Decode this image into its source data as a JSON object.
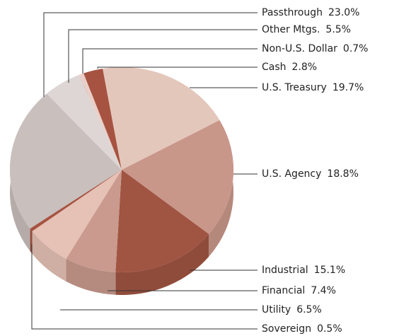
{
  "chart_data": {
    "type": "pie",
    "categories": [
      "Passthrough",
      "Other Mtgs.",
      "Non-U.S. Dollar",
      "Cash",
      "U.S. Treasury",
      "U.S. Agency",
      "Industrial",
      "Financial",
      "Utility",
      "Sovereign"
    ],
    "values": [
      23.0,
      5.5,
      0.7,
      2.8,
      19.7,
      18.8,
      15.1,
      7.4,
      6.5,
      0.5
    ],
    "value_labels": [
      "23.0%",
      "5.5%",
      "0.7%",
      "2.8%",
      "19.7%",
      "18.8%",
      "15.1%",
      "7.4%",
      "6.5%",
      "0.5%"
    ],
    "colors": [
      "#c9bfbd",
      "#ddd6d4",
      "#e9cfc7",
      "#a65341",
      "#e4c7bb",
      "#c9978a",
      "#a05442",
      "#c99a8d",
      "#e6c1b5",
      "#a65341"
    ]
  }
}
